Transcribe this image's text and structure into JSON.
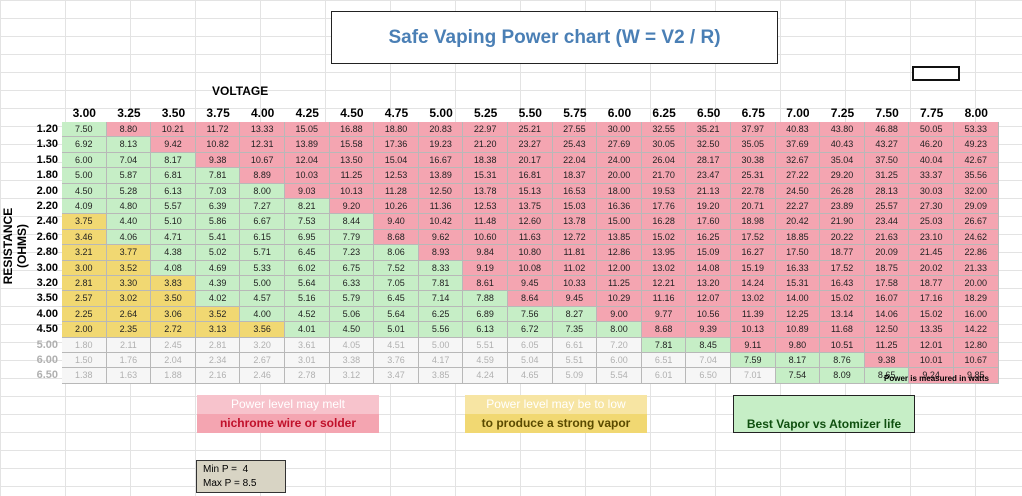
{
  "title": "Safe Vaping Power chart (W = V2 / R)",
  "xlabel": "VOLTAGE",
  "ylabel": "RESISTANCE (OHMS)",
  "unit_note": "Power is measured in watts",
  "legend": [
    {
      "line1": "Power level may melt",
      "line2": "nichrome wire or solder",
      "color": "#f4a5b1"
    },
    {
      "line1": "Power level may be to low",
      "line2": "to produce a strong vapor",
      "color": "#f1d872"
    },
    {
      "line1": "",
      "line2": "Best Vapor vs Atomizer life",
      "color": "#c6eec6"
    }
  ],
  "minmax": {
    "min_label": "Min P =",
    "min_value": "4",
    "max_label": "Max P =",
    "max_value": "8.5"
  },
  "colors": {
    "hot": "#f4a5b1",
    "low": "#f1d872",
    "best": "#c6eec6",
    "faded": "#f6f6f6"
  },
  "chart_data": {
    "type": "table",
    "title": "Safe Vaping Power chart (W = V2 / R)",
    "xlabel": "VOLTAGE",
    "ylabel": "RESISTANCE (OHMS)",
    "columns": [
      "3.00",
      "3.25",
      "3.50",
      "3.75",
      "4.00",
      "4.25",
      "4.50",
      "4.75",
      "5.00",
      "5.25",
      "5.50",
      "5.75",
      "6.00",
      "6.25",
      "6.50",
      "6.75",
      "7.00",
      "7.25",
      "7.50",
      "7.75",
      "8.00"
    ],
    "rows": [
      "1.20",
      "1.30",
      "1.50",
      "1.80",
      "2.00",
      "2.20",
      "2.40",
      "2.60",
      "2.80",
      "3.00",
      "3.20",
      "3.50",
      "4.00",
      "4.50",
      "5.00",
      "6.00",
      "6.50"
    ],
    "faded_rows": [
      14,
      15,
      16
    ],
    "values": [
      [
        "7.50",
        "8.80",
        "10.21",
        "11.72",
        "13.33",
        "15.05",
        "16.88",
        "18.80",
        "20.83",
        "22.97",
        "25.21",
        "27.55",
        "30.00",
        "32.55",
        "35.21",
        "37.97",
        "40.83",
        "43.80",
        "46.88",
        "50.05",
        "53.33"
      ],
      [
        "6.92",
        "8.13",
        "9.42",
        "10.82",
        "12.31",
        "13.89",
        "15.58",
        "17.36",
        "19.23",
        "21.20",
        "23.27",
        "25.43",
        "27.69",
        "30.05",
        "32.50",
        "35.05",
        "37.69",
        "40.43",
        "43.27",
        "46.20",
        "49.23"
      ],
      [
        "6.00",
        "7.04",
        "8.17",
        "9.38",
        "10.67",
        "12.04",
        "13.50",
        "15.04",
        "16.67",
        "18.38",
        "20.17",
        "22.04",
        "24.00",
        "26.04",
        "28.17",
        "30.38",
        "32.67",
        "35.04",
        "37.50",
        "40.04",
        "42.67"
      ],
      [
        "5.00",
        "5.87",
        "6.81",
        "7.81",
        "8.89",
        "10.03",
        "11.25",
        "12.53",
        "13.89",
        "15.31",
        "16.81",
        "18.37",
        "20.00",
        "21.70",
        "23.47",
        "25.31",
        "27.22",
        "29.20",
        "31.25",
        "33.37",
        "35.56"
      ],
      [
        "4.50",
        "5.28",
        "6.13",
        "7.03",
        "8.00",
        "9.03",
        "10.13",
        "11.28",
        "12.50",
        "13.78",
        "15.13",
        "16.53",
        "18.00",
        "19.53",
        "21.13",
        "22.78",
        "24.50",
        "26.28",
        "28.13",
        "30.03",
        "32.00"
      ],
      [
        "4.09",
        "4.80",
        "5.57",
        "6.39",
        "7.27",
        "8.21",
        "9.20",
        "10.26",
        "11.36",
        "12.53",
        "13.75",
        "15.03",
        "16.36",
        "17.76",
        "19.20",
        "20.71",
        "22.27",
        "23.89",
        "25.57",
        "27.30",
        "29.09"
      ],
      [
        "3.75",
        "4.40",
        "5.10",
        "5.86",
        "6.67",
        "7.53",
        "8.44",
        "9.40",
        "10.42",
        "11.48",
        "12.60",
        "13.78",
        "15.00",
        "16.28",
        "17.60",
        "18.98",
        "20.42",
        "21.90",
        "23.44",
        "25.03",
        "26.67"
      ],
      [
        "3.46",
        "4.06",
        "4.71",
        "5.41",
        "6.15",
        "6.95",
        "7.79",
        "8.68",
        "9.62",
        "10.60",
        "11.63",
        "12.72",
        "13.85",
        "15.02",
        "16.25",
        "17.52",
        "18.85",
        "20.22",
        "21.63",
        "23.10",
        "24.62"
      ],
      [
        "3.21",
        "3.77",
        "4.38",
        "5.02",
        "5.71",
        "6.45",
        "7.23",
        "8.06",
        "8.93",
        "9.84",
        "10.80",
        "11.81",
        "12.86",
        "13.95",
        "15.09",
        "16.27",
        "17.50",
        "18.77",
        "20.09",
        "21.45",
        "22.86"
      ],
      [
        "3.00",
        "3.52",
        "4.08",
        "4.69",
        "5.33",
        "6.02",
        "6.75",
        "7.52",
        "8.33",
        "9.19",
        "10.08",
        "11.02",
        "12.00",
        "13.02",
        "14.08",
        "15.19",
        "16.33",
        "17.52",
        "18.75",
        "20.02",
        "21.33"
      ],
      [
        "2.81",
        "3.30",
        "3.83",
        "4.39",
        "5.00",
        "5.64",
        "6.33",
        "7.05",
        "7.81",
        "8.61",
        "9.45",
        "10.33",
        "11.25",
        "12.21",
        "13.20",
        "14.24",
        "15.31",
        "16.43",
        "17.58",
        "18.77",
        "20.00"
      ],
      [
        "2.57",
        "3.02",
        "3.50",
        "4.02",
        "4.57",
        "5.16",
        "5.79",
        "6.45",
        "7.14",
        "7.88",
        "8.64",
        "9.45",
        "10.29",
        "11.16",
        "12.07",
        "13.02",
        "14.00",
        "15.02",
        "16.07",
        "17.16",
        "18.29"
      ],
      [
        "2.25",
        "2.64",
        "3.06",
        "3.52",
        "4.00",
        "4.52",
        "5.06",
        "5.64",
        "6.25",
        "6.89",
        "7.56",
        "8.27",
        "9.00",
        "9.77",
        "10.56",
        "11.39",
        "12.25",
        "13.14",
        "14.06",
        "15.02",
        "16.00"
      ],
      [
        "2.00",
        "2.35",
        "2.72",
        "3.13",
        "3.56",
        "4.01",
        "4.50",
        "5.01",
        "5.56",
        "6.13",
        "6.72",
        "7.35",
        "8.00",
        "8.68",
        "9.39",
        "10.13",
        "10.89",
        "11.68",
        "12.50",
        "13.35",
        "14.22"
      ],
      [
        "1.80",
        "2.11",
        "2.45",
        "2.81",
        "3.20",
        "3.61",
        "4.05",
        "4.51",
        "5.00",
        "5.51",
        "6.05",
        "6.61",
        "7.20",
        "7.81",
        "8.45",
        "9.11",
        "9.80",
        "10.51",
        "11.25",
        "12.01",
        "12.80"
      ],
      [
        "1.50",
        "1.76",
        "2.04",
        "2.34",
        "2.67",
        "3.01",
        "3.38",
        "3.76",
        "4.17",
        "4.59",
        "5.04",
        "5.51",
        "6.00",
        "6.51",
        "7.04",
        "7.59",
        "8.17",
        "8.76",
        "9.38",
        "10.01",
        "10.67"
      ],
      [
        "1.38",
        "1.63",
        "1.88",
        "2.16",
        "2.46",
        "2.78",
        "3.12",
        "3.47",
        "3.85",
        "4.24",
        "4.65",
        "5.09",
        "5.54",
        "6.01",
        "6.50",
        "7.01",
        "7.54",
        "8.09",
        "8.65",
        "9.24",
        "9.85"
      ]
    ]
  }
}
